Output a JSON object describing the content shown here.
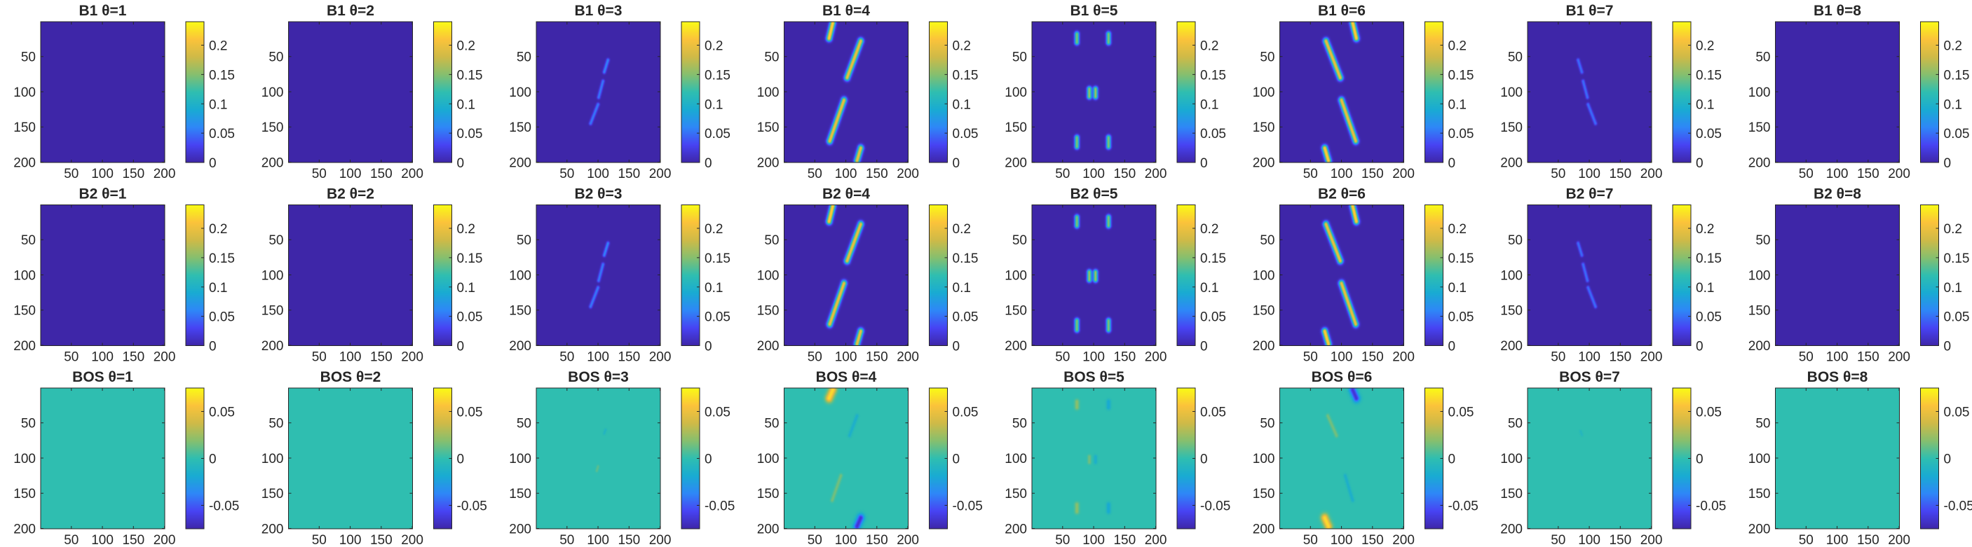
{
  "figure": {
    "panels": [
      {
        "title": "B1 θ=1",
        "row": "B1",
        "theta": 1
      },
      {
        "title": "B1 θ=2",
        "row": "B1",
        "theta": 2
      },
      {
        "title": "B1 θ=3",
        "row": "B1",
        "theta": 3
      },
      {
        "title": "B1 θ=4",
        "row": "B1",
        "theta": 4
      },
      {
        "title": "B1 θ=5",
        "row": "B1",
        "theta": 5
      },
      {
        "title": "B1 θ=6",
        "row": "B1",
        "theta": 6
      },
      {
        "title": "B1 θ=7",
        "row": "B1",
        "theta": 7
      },
      {
        "title": "B1 θ=8",
        "row": "B1",
        "theta": 8
      },
      {
        "title": "B2 θ=1",
        "row": "B2",
        "theta": 1
      },
      {
        "title": "B2 θ=2",
        "row": "B2",
        "theta": 2
      },
      {
        "title": "B2 θ=3",
        "row": "B2",
        "theta": 3
      },
      {
        "title": "B2 θ=4",
        "row": "B2",
        "theta": 4
      },
      {
        "title": "B2 θ=5",
        "row": "B2",
        "theta": 5
      },
      {
        "title": "B2 θ=6",
        "row": "B2",
        "theta": 6
      },
      {
        "title": "B2 θ=7",
        "row": "B2",
        "theta": 7
      },
      {
        "title": "B2 θ=8",
        "row": "B2",
        "theta": 8
      },
      {
        "title": "BOS θ=1",
        "row": "BOS",
        "theta": 1
      },
      {
        "title": "BOS θ=2",
        "row": "BOS",
        "theta": 2
      },
      {
        "title": "BOS θ=3",
        "row": "BOS",
        "theta": 3
      },
      {
        "title": "BOS θ=4",
        "row": "BOS",
        "theta": 4
      },
      {
        "title": "BOS θ=5",
        "row": "BOS",
        "theta": 5
      },
      {
        "title": "BOS θ=6",
        "row": "BOS",
        "theta": 6
      },
      {
        "title": "BOS θ=7",
        "row": "BOS",
        "theta": 7
      },
      {
        "title": "BOS θ=8",
        "row": "BOS",
        "theta": 8
      }
    ]
  },
  "chart_data": {
    "type": "heatmap",
    "grid": {
      "rows": 3,
      "cols": 8
    },
    "colormap": "parula",
    "colormap_stops": [
      "#3e26a8",
      "#4743f3",
      "#2e87f7",
      "#19abd2",
      "#2fbeb0",
      "#86bf6e",
      "#cfba47",
      "#fbc33a",
      "#f9fb15"
    ],
    "x_ticks": [
      "50",
      "100",
      "150",
      "200"
    ],
    "x_tick_values": [
      50,
      100,
      150,
      200
    ],
    "y_ticks": [
      "50",
      "100",
      "150",
      "200"
    ],
    "y_tick_values": [
      50,
      100,
      150,
      200
    ],
    "x_range": [
      0.5,
      200.5
    ],
    "y_range": [
      0.5,
      200.5
    ],
    "y_reversed": true,
    "row_settings": {
      "B1": {
        "clim": [
          0,
          0.24
        ],
        "colorbar_ticks": [
          "0",
          "0.05",
          "0.1",
          "0.15",
          "0.2"
        ],
        "colorbar_tick_values": [
          0,
          0.05,
          0.1,
          0.15,
          0.2
        ]
      },
      "B2": {
        "clim": [
          0,
          0.24
        ],
        "colorbar_ticks": [
          "0",
          "0.05",
          "0.1",
          "0.15",
          "0.2"
        ],
        "colorbar_tick_values": [
          0,
          0.05,
          0.1,
          0.15,
          0.2
        ]
      },
      "BOS": {
        "clim": [
          -0.075,
          0.075
        ],
        "colorbar_ticks": [
          "-0.05",
          "0",
          "0.05"
        ],
        "colorbar_tick_values": [
          -0.05,
          0,
          0.05
        ]
      }
    },
    "features": {
      "B1": {
        "1": [],
        "2": [],
        "8": [],
        "3": [
          {
            "x1": 88,
            "y1": 145,
            "x2": 100,
            "y2": 118,
            "amp": 0.055,
            "w": 1.8
          },
          {
            "x1": 101,
            "y1": 108,
            "x2": 108,
            "y2": 85,
            "amp": 0.055,
            "w": 1.8
          },
          {
            "x1": 110,
            "y1": 72,
            "x2": 116,
            "y2": 55,
            "amp": 0.06,
            "w": 1.8
          }
        ],
        "4": [
          {
            "x1": 73,
            "y1": 24,
            "x2": 79,
            "y2": 2,
            "amp": 0.22,
            "w": 3
          },
          {
            "x1": 102,
            "y1": 80,
            "x2": 124,
            "y2": 28,
            "amp": 0.2,
            "w": 3
          },
          {
            "x1": 74,
            "y1": 170,
            "x2": 97,
            "y2": 112,
            "amp": 0.2,
            "w": 3
          },
          {
            "x1": 118,
            "y1": 198,
            "x2": 124,
            "y2": 180,
            "amp": 0.2,
            "w": 3
          }
        ],
        "5": [
          {
            "x1": 73,
            "y1": 18,
            "x2": 73,
            "y2": 30,
            "amp": 0.15,
            "w": 2.5
          },
          {
            "x1": 124,
            "y1": 18,
            "x2": 124,
            "y2": 30,
            "amp": 0.15,
            "w": 2.5
          },
          {
            "x1": 93,
            "y1": 96,
            "x2": 93,
            "y2": 107,
            "amp": 0.16,
            "w": 2.5
          },
          {
            "x1": 103,
            "y1": 96,
            "x2": 103,
            "y2": 107,
            "amp": 0.16,
            "w": 2.5
          },
          {
            "x1": 73,
            "y1": 165,
            "x2": 73,
            "y2": 178,
            "amp": 0.15,
            "w": 2.5
          },
          {
            "x1": 124,
            "y1": 165,
            "x2": 124,
            "y2": 178,
            "amp": 0.15,
            "w": 2.5
          }
        ],
        "6": [
          {
            "x1": 118,
            "y1": 2,
            "x2": 124,
            "y2": 24,
            "amp": 0.22,
            "w": 3
          },
          {
            "x1": 75,
            "y1": 28,
            "x2": 98,
            "y2": 80,
            "amp": 0.2,
            "w": 3
          },
          {
            "x1": 100,
            "y1": 112,
            "x2": 123,
            "y2": 170,
            "amp": 0.2,
            "w": 3
          },
          {
            "x1": 73,
            "y1": 180,
            "x2": 79,
            "y2": 198,
            "amp": 0.22,
            "w": 3
          }
        ],
        "7": [
          {
            "x1": 82,
            "y1": 55,
            "x2": 88,
            "y2": 72,
            "amp": 0.05,
            "w": 1.8
          },
          {
            "x1": 90,
            "y1": 85,
            "x2": 97,
            "y2": 108,
            "amp": 0.05,
            "w": 1.8
          },
          {
            "x1": 98,
            "y1": 118,
            "x2": 110,
            "y2": 145,
            "amp": 0.05,
            "w": 1.8
          }
        ]
      },
      "B2": {
        "1": [],
        "2": [],
        "8": [],
        "3": [
          {
            "x1": 88,
            "y1": 145,
            "x2": 100,
            "y2": 118,
            "amp": 0.055,
            "w": 1.8
          },
          {
            "x1": 101,
            "y1": 108,
            "x2": 108,
            "y2": 85,
            "amp": 0.055,
            "w": 1.8
          },
          {
            "x1": 110,
            "y1": 72,
            "x2": 116,
            "y2": 55,
            "amp": 0.06,
            "w": 1.8
          }
        ],
        "4": [
          {
            "x1": 73,
            "y1": 24,
            "x2": 79,
            "y2": 2,
            "amp": 0.22,
            "w": 3
          },
          {
            "x1": 102,
            "y1": 80,
            "x2": 124,
            "y2": 28,
            "amp": 0.2,
            "w": 3
          },
          {
            "x1": 74,
            "y1": 170,
            "x2": 97,
            "y2": 112,
            "amp": 0.2,
            "w": 3
          },
          {
            "x1": 118,
            "y1": 198,
            "x2": 124,
            "y2": 180,
            "amp": 0.2,
            "w": 3
          }
        ],
        "5": [
          {
            "x1": 73,
            "y1": 18,
            "x2": 73,
            "y2": 30,
            "amp": 0.15,
            "w": 2.5
          },
          {
            "x1": 124,
            "y1": 18,
            "x2": 124,
            "y2": 30,
            "amp": 0.15,
            "w": 2.5
          },
          {
            "x1": 93,
            "y1": 96,
            "x2": 93,
            "y2": 107,
            "amp": 0.16,
            "w": 2.5
          },
          {
            "x1": 103,
            "y1": 96,
            "x2": 103,
            "y2": 107,
            "amp": 0.16,
            "w": 2.5
          },
          {
            "x1": 73,
            "y1": 165,
            "x2": 73,
            "y2": 178,
            "amp": 0.15,
            "w": 2.5
          },
          {
            "x1": 124,
            "y1": 165,
            "x2": 124,
            "y2": 178,
            "amp": 0.15,
            "w": 2.5
          }
        ],
        "6": [
          {
            "x1": 118,
            "y1": 2,
            "x2": 124,
            "y2": 24,
            "amp": 0.22,
            "w": 3
          },
          {
            "x1": 75,
            "y1": 28,
            "x2": 98,
            "y2": 80,
            "amp": 0.2,
            "w": 3
          },
          {
            "x1": 100,
            "y1": 112,
            "x2": 123,
            "y2": 170,
            "amp": 0.2,
            "w": 3
          },
          {
            "x1": 73,
            "y1": 180,
            "x2": 79,
            "y2": 198,
            "amp": 0.22,
            "w": 3
          }
        ],
        "7": [
          {
            "x1": 82,
            "y1": 55,
            "x2": 88,
            "y2": 72,
            "amp": 0.05,
            "w": 1.8
          },
          {
            "x1": 90,
            "y1": 85,
            "x2": 97,
            "y2": 108,
            "amp": 0.05,
            "w": 1.8
          },
          {
            "x1": 98,
            "y1": 118,
            "x2": 110,
            "y2": 145,
            "amp": 0.05,
            "w": 1.8
          }
        ]
      },
      "BOS": {
        "1": [],
        "2": [],
        "8": [],
        "3": [
          {
            "x1": 98,
            "y1": 118,
            "x2": 100,
            "y2": 112,
            "amp": 0.01,
            "w": 1.5
          },
          {
            "x1": 110,
            "y1": 65,
            "x2": 112,
            "y2": 60,
            "amp": -0.01,
            "w": 1.5
          }
        ],
        "4": [
          {
            "x1": 73,
            "y1": 15,
            "x2": 79,
            "y2": 3,
            "amp": 0.065,
            "w": 4
          },
          {
            "x1": 118,
            "y1": 197,
            "x2": 124,
            "y2": 185,
            "amp": -0.065,
            "w": 4
          },
          {
            "x1": 106,
            "y1": 68,
            "x2": 118,
            "y2": 40,
            "amp": -0.015,
            "w": 2
          },
          {
            "x1": 78,
            "y1": 160,
            "x2": 92,
            "y2": 125,
            "amp": 0.015,
            "w": 2
          }
        ],
        "5": [
          {
            "x1": 73,
            "y1": 20,
            "x2": 73,
            "y2": 28,
            "amp": 0.02,
            "w": 2.5
          },
          {
            "x1": 124,
            "y1": 20,
            "x2": 124,
            "y2": 28,
            "amp": -0.02,
            "w": 2.5
          },
          {
            "x1": 93,
            "y1": 98,
            "x2": 93,
            "y2": 106,
            "amp": 0.015,
            "w": 2
          },
          {
            "x1": 103,
            "y1": 98,
            "x2": 103,
            "y2": 106,
            "amp": -0.015,
            "w": 2
          },
          {
            "x1": 73,
            "y1": 166,
            "x2": 73,
            "y2": 176,
            "amp": 0.02,
            "w": 2.5
          },
          {
            "x1": 124,
            "y1": 166,
            "x2": 124,
            "y2": 176,
            "amp": -0.02,
            "w": 2.5
          }
        ],
        "6": [
          {
            "x1": 118,
            "y1": 3,
            "x2": 124,
            "y2": 15,
            "amp": -0.065,
            "w": 4
          },
          {
            "x1": 73,
            "y1": 185,
            "x2": 79,
            "y2": 197,
            "amp": 0.065,
            "w": 4
          },
          {
            "x1": 78,
            "y1": 40,
            "x2": 92,
            "y2": 68,
            "amp": 0.015,
            "w": 2
          },
          {
            "x1": 106,
            "y1": 125,
            "x2": 118,
            "y2": 160,
            "amp": -0.015,
            "w": 2
          }
        ],
        "7": [
          {
            "x1": 86,
            "y1": 62,
            "x2": 88,
            "y2": 67,
            "amp": -0.008,
            "w": 1.5
          }
        ]
      }
    }
  }
}
